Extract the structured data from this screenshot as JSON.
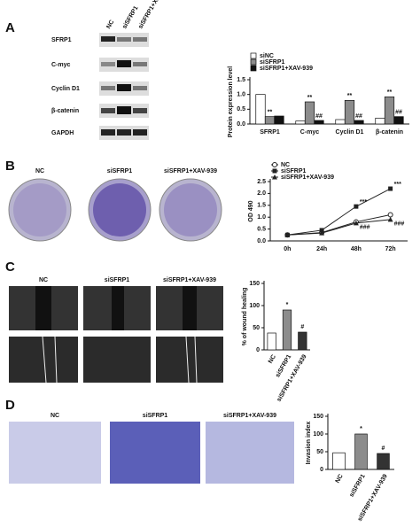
{
  "panels": [
    "A",
    "B",
    "C",
    "D"
  ],
  "blot": {
    "columns": [
      "NC",
      "siSFRP1",
      "siSFRP1+XAV-939"
    ],
    "rows": [
      "SFRP1",
      "C-myc",
      "Cyclin D1",
      "β-catenin",
      "GAPDH"
    ]
  },
  "image_labels": {
    "B": [
      "NC",
      "siSFRP1",
      "siSFRP1+XAV-939"
    ],
    "C": [
      "NC",
      "siSFRP1",
      "siSFRP1+XAV-939"
    ],
    "D": [
      "NC",
      "siSFRP1",
      "siSFRP1+XAV-939"
    ]
  },
  "chart_data": [
    {
      "type": "bar",
      "y_label": "Protein expression level",
      "categories": [
        "SFRP1",
        "C-myc",
        "Cyclin D1",
        "β-catenin"
      ],
      "series": [
        {
          "name": "siNC",
          "color": "#ffffff",
          "values": [
            1.0,
            0.1,
            0.15,
            0.2
          ]
        },
        {
          "name": "siSFRP1",
          "color": "#8c8c8c",
          "values": [
            0.25,
            0.75,
            0.8,
            0.92
          ],
          "annotations": [
            "**",
            "**",
            "**",
            "**"
          ]
        },
        {
          "name": "siSFRP1+XAV-939",
          "color": "#111111",
          "values": [
            0.27,
            0.12,
            0.12,
            0.25
          ],
          "annotations": [
            null,
            "##",
            "##",
            "##"
          ]
        }
      ],
      "ylim": [
        0,
        1.5
      ],
      "yticks": [
        {
          "value": 0,
          "label": "0.0"
        },
        0.5,
        {
          "value": 1,
          "label": "1.0"
        },
        1.5
      ]
    },
    {
      "type": "line",
      "y_label": "OD 490",
      "categories": [
        "0h",
        "24h",
        "48h",
        "72h"
      ],
      "series": [
        {
          "name": "NC",
          "color": "#222222",
          "marker": "circle",
          "values": [
            0.25,
            0.35,
            0.8,
            1.1
          ]
        },
        {
          "name": "siSFRP1",
          "color": "#222222",
          "marker": "square",
          "values": [
            0.25,
            0.45,
            1.45,
            2.2
          ],
          "annotations": [
            null,
            null,
            "***",
            "***"
          ]
        },
        {
          "name": "siSFRP1+XAV-939",
          "color": "#222222",
          "marker": "triangle",
          "values": [
            0.25,
            0.33,
            0.75,
            0.9
          ],
          "annotations": [
            null,
            null,
            "###",
            "###"
          ]
        }
      ],
      "ylim": [
        0,
        2.5
      ],
      "yticks": [
        {
          "value": 0,
          "label": "0.0"
        },
        0.5,
        {
          "value": 1,
          "label": "1.0"
        },
        1.5,
        {
          "value": 2,
          "label": "2.0"
        },
        2.5
      ]
    },
    {
      "type": "bar",
      "y_label": "% of wound healing",
      "categories": [
        "NC",
        "siSFRP1",
        "siSFRP1+XAV-939"
      ],
      "values": [
        38,
        90,
        40
      ],
      "colors": [
        "#ffffff",
        "#8c8c8c",
        "#333333"
      ],
      "annotations": [
        null,
        "*",
        "#"
      ],
      "ylim": [
        0,
        150
      ],
      "yticks": [
        0,
        50,
        100,
        150
      ]
    },
    {
      "type": "bar",
      "y_label": "Invasion index",
      "categories": [
        "NC",
        "siSFRP1",
        "siSFRP1+XAV-939"
      ],
      "values": [
        47,
        100,
        45
      ],
      "colors": [
        "#ffffff",
        "#8c8c8c",
        "#333333"
      ],
      "annotations": [
        null,
        "*",
        "#"
      ],
      "ylim": [
        0,
        150
      ],
      "yticks": [
        0,
        50,
        100,
        150
      ]
    }
  ]
}
